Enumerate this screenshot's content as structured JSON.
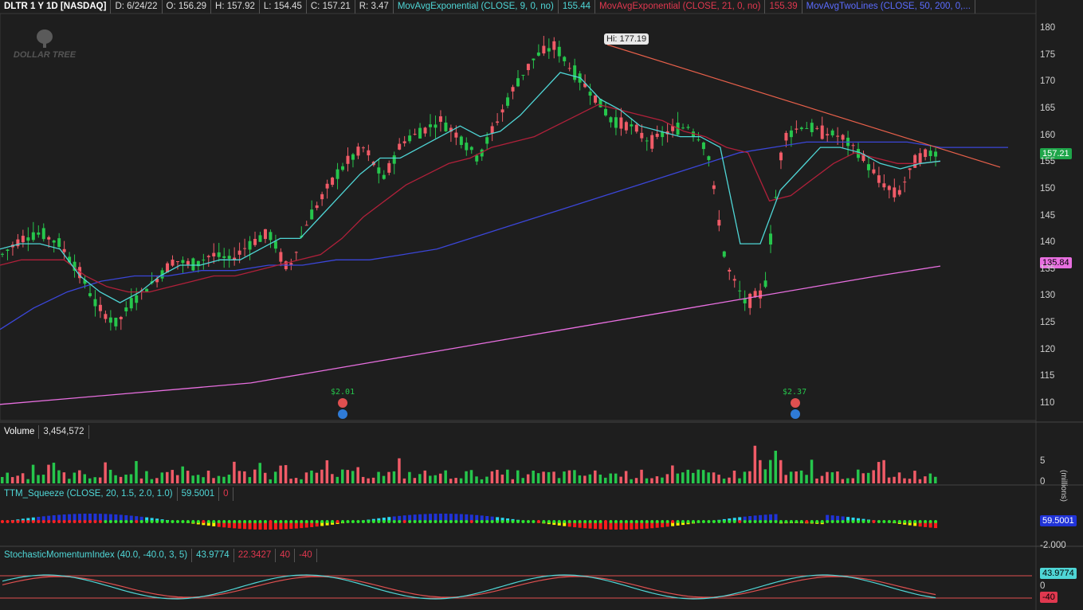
{
  "header": {
    "symbol": "DLTR 1 Y 1D [NASDAQ]",
    "date": "D: 6/24/22",
    "open": "O: 156.29",
    "high": "H: 157.92",
    "low": "L: 154.45",
    "close": "C: 157.21",
    "range": "R: 3.47",
    "ema9_label": "MovAvgExponential (CLOSE, 9, 0, no)",
    "ema9_value": "155.44",
    "ema21_label": "MovAvgExponential (CLOSE, 21, 0, no)",
    "ema21_value": "155.39",
    "ma2_label": "MovAvgTwoLines (CLOSE, 50, 200, 0,...",
    "ema9_color": "#4fd6d6",
    "ema21_color": "#e0384f",
    "ma2_color": "#5b6cff"
  },
  "logo": {
    "text": "DOLLAR TREE"
  },
  "price_panel": {
    "hi_label": "Hi: 177.19",
    "last_price": "157.21",
    "ma200_value": "135.84",
    "y_ticks": [
      "180",
      "175",
      "170",
      "165",
      "160",
      "155",
      "150",
      "145",
      "140",
      "135",
      "130",
      "125",
      "120",
      "115",
      "110"
    ],
    "dividends": [
      {
        "label": "$2.01"
      },
      {
        "label": "$2.37"
      }
    ]
  },
  "volume_panel": {
    "label": "Volume",
    "value": "3,454,572",
    "y_ticks": [
      "5",
      "0"
    ],
    "unit": "(millions)"
  },
  "squeeze_panel": {
    "label": "TTM_Squeeze (CLOSE, 20, 1.5, 2.0, 1.0)",
    "value": "59.5001",
    "value2": "0",
    "last_value": "59.5001",
    "y_ticks": [
      "-2.000"
    ]
  },
  "smi_panel": {
    "label": "StochasticMomentumIndex (40.0, -40.0, 3, 5)",
    "v1": "43.9774",
    "v2": "22.3427",
    "v3": "40",
    "v4": "-40",
    "last_value": "43.9774",
    "lower_tag": "-40",
    "y_ticks": [
      "0"
    ]
  },
  "chart_data": {
    "type": "candlestick",
    "series": [
      {
        "name": "DLTR price (approx. weekly closes)",
        "close": [
          138,
          141,
          142,
          140,
          135,
          128,
          125,
          130,
          133,
          137,
          136,
          138,
          137,
          140,
          142,
          135,
          144,
          150,
          155,
          158,
          152,
          159,
          161,
          163,
          160,
          156,
          163,
          170,
          175,
          177,
          172,
          168,
          163,
          162,
          159,
          161,
          162,
          158,
          136,
          129,
          131,
          160,
          162,
          161,
          160,
          157,
          152,
          149,
          156,
          157.21
        ]
      },
      {
        "name": "EMA 9",
        "close": [
          139,
          140,
          140,
          139,
          134,
          131,
          129,
          131,
          134,
          136,
          136,
          137,
          137,
          139,
          141,
          141,
          145,
          149,
          153,
          156,
          156,
          158,
          160,
          162,
          160,
          161,
          164,
          168,
          172,
          171,
          167,
          165,
          162,
          161,
          160,
          160,
          158,
          140,
          140,
          150,
          154,
          158,
          158,
          157,
          155,
          154,
          155,
          155.44
        ]
      },
      {
        "name": "EMA 21",
        "close": [
          136,
          137,
          137,
          137,
          134,
          132,
          131,
          131,
          132,
          133,
          134,
          134,
          135,
          136,
          137,
          138,
          141,
          145,
          148,
          151,
          153,
          155,
          156,
          158,
          159,
          160,
          162,
          164,
          166,
          165,
          164,
          163,
          161,
          160,
          158,
          157,
          148,
          149,
          152,
          155,
          157,
          156,
          155,
          155,
          155.39
        ]
      },
      {
        "name": "MA 50",
        "close": [
          124,
          128,
          131,
          133,
          134,
          134,
          135,
          135,
          136,
          136,
          137,
          137,
          138,
          139,
          141,
          143,
          145,
          147,
          149,
          151,
          153,
          155,
          157,
          158,
          159,
          159,
          159,
          159,
          158,
          158,
          158
        ]
      },
      {
        "name": "MA 200",
        "close": [
          110,
          111,
          112,
          113,
          114,
          116,
          118,
          120,
          122,
          124,
          126,
          128,
          130,
          132,
          134,
          135.84
        ]
      }
    ],
    "y_range": [
      107,
      183
    ],
    "hi": 177.19,
    "last": 157.21
  }
}
